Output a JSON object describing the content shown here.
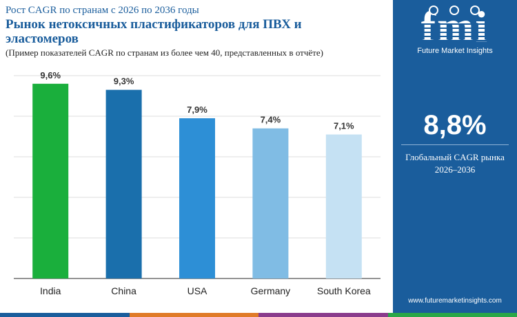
{
  "header": {
    "eyebrow": "Рост CAGR по странам с 2026 по 2036 годы",
    "title_line1": "Рынок нетоксичных пластификаторов для ПВХ и",
    "title_line2": "эластомеров",
    "subtitle": "(Пример показателей CAGR по странам из более чем 40, представленных в отчёте)"
  },
  "panel": {
    "logo_text": "fmi",
    "logo_sub": "Future Market Insights",
    "big_value": "8,8%",
    "cagr_label_line1": "Глобальный CAGR рынка",
    "cagr_label_line2": "2026–2036",
    "website": "www.futuremarketinsights.com",
    "background_color": "#1a5d9c"
  },
  "bottom_band_colors": [
    "#1a5d9c",
    "#e07b28",
    "#8a3c8c",
    "#2aa748"
  ],
  "chart_data": {
    "type": "bar",
    "categories": [
      "India",
      "China",
      "USA",
      "Germany",
      "South Korea"
    ],
    "values": [
      9.6,
      9.3,
      7.9,
      7.4,
      7.1
    ],
    "value_labels": [
      "9,6%",
      "9,3%",
      "7,9%",
      "7,4%",
      "7,1%"
    ],
    "colors": [
      "#1aaf3c",
      "#1a6fac",
      "#2d8fd6",
      "#80bce4",
      "#c5e1f3"
    ],
    "ylim": [
      0,
      10
    ],
    "grid": true
  }
}
